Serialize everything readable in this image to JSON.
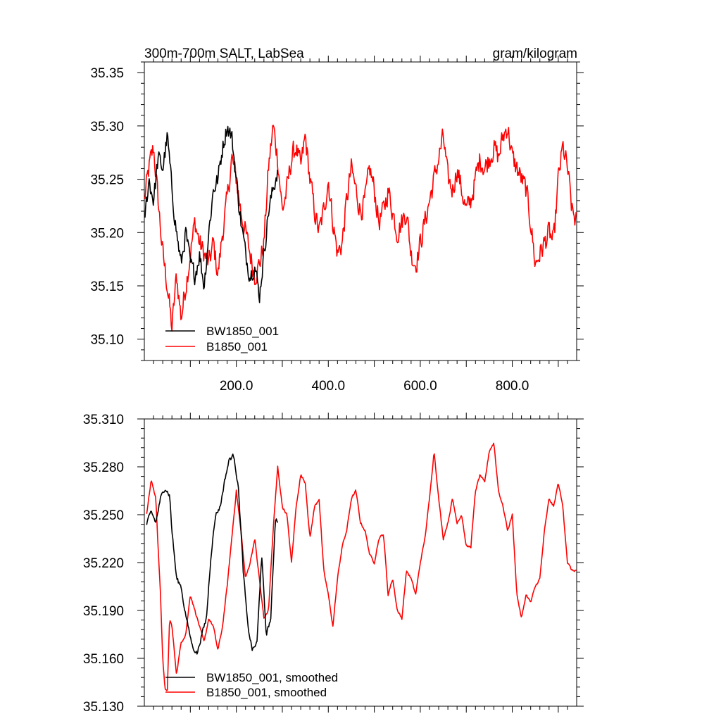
{
  "chart_data": [
    {
      "type": "line",
      "title": "300m-700m SALT, LabSea",
      "units": "gram/kilogram",
      "xlim": [
        0,
        940
      ],
      "ylim": [
        35.08,
        35.36
      ],
      "xticks": [
        200,
        400,
        600,
        800
      ],
      "xtick_labels": [
        "200.0",
        "400.0",
        "600.0",
        "800.0"
      ],
      "yticks": [
        35.1,
        35.15,
        35.2,
        35.25,
        35.3,
        35.35
      ],
      "ytick_labels": [
        "35.10",
        "35.15",
        "35.20",
        "35.25",
        "35.30",
        "35.35"
      ],
      "grid": false,
      "legend_position": "bottom-left",
      "colors": {
        "BW1850_001": "#000000",
        "B1850_001": "#ff0000"
      },
      "series": [
        {
          "name": "BW1850_001",
          "color": "#000000",
          "x": [
            0,
            10,
            20,
            30,
            40,
            50,
            60,
            70,
            80,
            90,
            100,
            110,
            120,
            130,
            140,
            150,
            160,
            170,
            180,
            190,
            200,
            210,
            220,
            230,
            240,
            250,
            260,
            270,
            280,
            290
          ],
          "values": [
            35.21,
            35.25,
            35.23,
            35.27,
            35.26,
            35.29,
            35.24,
            35.2,
            35.17,
            35.2,
            35.17,
            35.16,
            35.18,
            35.15,
            35.2,
            35.24,
            35.25,
            35.28,
            35.3,
            35.29,
            35.25,
            35.21,
            35.18,
            35.16,
            35.17,
            35.14,
            35.18,
            35.22,
            35.24,
            35.26
          ],
          "amplitude": 0.012
        },
        {
          "name": "B1850_001",
          "color": "#ff0000",
          "x": [
            0,
            10,
            20,
            30,
            40,
            50,
            60,
            70,
            80,
            90,
            100,
            110,
            120,
            130,
            140,
            150,
            160,
            170,
            180,
            190,
            200,
            210,
            220,
            230,
            240,
            250,
            260,
            270,
            280,
            290,
            300,
            310,
            320,
            330,
            340,
            350,
            360,
            370,
            380,
            390,
            400,
            410,
            420,
            430,
            440,
            450,
            460,
            470,
            480,
            490,
            500,
            510,
            520,
            530,
            540,
            550,
            560,
            570,
            580,
            590,
            600,
            610,
            620,
            630,
            640,
            650,
            660,
            670,
            680,
            690,
            700,
            710,
            720,
            730,
            740,
            750,
            760,
            770,
            780,
            790,
            800,
            810,
            820,
            830,
            840,
            850,
            860,
            870,
            880,
            890,
            900,
            910,
            920,
            930,
            940
          ],
          "values": [
            35.23,
            35.26,
            35.28,
            35.23,
            35.18,
            35.15,
            35.11,
            35.16,
            35.12,
            35.15,
            35.18,
            35.21,
            35.19,
            35.18,
            35.17,
            35.19,
            35.16,
            35.2,
            35.23,
            35.27,
            35.25,
            35.22,
            35.2,
            35.18,
            35.16,
            35.17,
            35.19,
            35.26,
            35.3,
            35.27,
            35.22,
            35.24,
            35.27,
            35.28,
            35.26,
            35.29,
            35.25,
            35.22,
            35.2,
            35.22,
            35.25,
            35.21,
            35.18,
            35.19,
            35.23,
            35.26,
            35.24,
            35.22,
            35.23,
            35.26,
            35.24,
            35.21,
            35.22,
            35.24,
            35.22,
            35.2,
            35.21,
            35.22,
            35.18,
            35.17,
            35.19,
            35.21,
            35.23,
            35.25,
            35.27,
            35.29,
            35.25,
            35.24,
            35.26,
            35.24,
            35.22,
            35.23,
            35.25,
            35.27,
            35.26,
            35.27,
            35.28,
            35.27,
            35.29,
            35.3,
            35.27,
            35.26,
            35.25,
            35.24,
            35.21,
            35.17,
            35.18,
            35.19,
            35.2,
            35.19,
            35.25,
            35.28,
            35.26,
            35.22,
            35.21
          ],
          "amplitude": 0.015
        }
      ]
    },
    {
      "type": "line",
      "xlim": [
        0,
        940
      ],
      "ylim": [
        35.13,
        35.31
      ],
      "yticks": [
        35.13,
        35.16,
        35.19,
        35.22,
        35.25,
        35.28,
        35.31
      ],
      "ytick_labels": [
        "35.130",
        "35.160",
        "35.190",
        "35.220",
        "35.250",
        "35.280",
        "35.310"
      ],
      "grid": false,
      "legend_position": "bottom-left",
      "colors": {
        "BW1850_001, smoothed": "#000000",
        "B1850_001, smoothed": "#ff0000"
      },
      "series": [
        {
          "name": "BW1850_001, smoothed",
          "color": "#000000",
          "x": [
            5,
            15,
            25,
            35,
            45,
            55,
            60,
            70,
            80,
            85,
            95,
            105,
            115,
            125,
            135,
            145,
            155,
            165,
            175,
            185,
            195,
            205,
            215,
            225,
            235,
            245,
            255,
            265,
            275,
            285,
            290
          ],
          "values": [
            35.244,
            35.252,
            35.245,
            35.26,
            35.267,
            35.262,
            35.24,
            35.21,
            35.205,
            35.195,
            35.18,
            35.167,
            35.163,
            35.175,
            35.185,
            35.225,
            35.25,
            35.255,
            35.272,
            35.285,
            35.287,
            35.265,
            35.215,
            35.18,
            35.165,
            35.17,
            35.225,
            35.175,
            35.185,
            35.248,
            35.246
          ],
          "amplitude": 0.002
        },
        {
          "name": "B1850_001, smoothed",
          "color": "#ff0000",
          "x": [
            5,
            15,
            25,
            35,
            40,
            45,
            50,
            55,
            60,
            70,
            75,
            80,
            90,
            100,
            110,
            120,
            130,
            140,
            150,
            160,
            170,
            180,
            190,
            200,
            210,
            220,
            230,
            240,
            250,
            260,
            270,
            280,
            290,
            300,
            310,
            320,
            330,
            340,
            350,
            360,
            370,
            380,
            390,
            400,
            410,
            420,
            430,
            440,
            450,
            460,
            470,
            480,
            490,
            500,
            510,
            520,
            530,
            540,
            550,
            560,
            570,
            580,
            590,
            600,
            610,
            620,
            630,
            640,
            650,
            660,
            670,
            680,
            690,
            700,
            710,
            720,
            730,
            740,
            750,
            760,
            770,
            780,
            790,
            800,
            810,
            820,
            830,
            840,
            850,
            860,
            870,
            880,
            890,
            900,
            910,
            920,
            930,
            940
          ],
          "values": [
            35.25,
            35.272,
            35.26,
            35.2,
            35.16,
            35.14,
            35.14,
            35.185,
            35.18,
            35.15,
            35.16,
            35.17,
            35.175,
            35.2,
            35.19,
            35.18,
            35.17,
            35.185,
            35.18,
            35.165,
            35.18,
            35.205,
            35.235,
            35.265,
            35.24,
            35.21,
            35.22,
            35.235,
            35.21,
            35.185,
            35.19,
            35.24,
            35.28,
            35.255,
            35.25,
            35.22,
            35.255,
            35.275,
            35.27,
            35.235,
            35.255,
            35.26,
            35.215,
            35.2,
            35.18,
            35.21,
            35.23,
            35.24,
            35.26,
            35.265,
            35.245,
            35.24,
            35.225,
            35.22,
            35.235,
            35.238,
            35.2,
            35.21,
            35.19,
            35.185,
            35.215,
            35.21,
            35.2,
            35.22,
            35.235,
            35.26,
            35.29,
            35.26,
            35.235,
            35.245,
            35.26,
            35.245,
            35.25,
            35.23,
            35.23,
            35.265,
            35.275,
            35.27,
            35.29,
            35.295,
            35.265,
            35.255,
            35.24,
            35.25,
            35.2,
            35.185,
            35.2,
            35.195,
            35.205,
            35.21,
            35.24,
            35.26,
            35.255,
            35.27,
            35.255,
            35.22,
            35.215,
            35.215
          ],
          "amplitude": 0.001
        }
      ]
    }
  ]
}
